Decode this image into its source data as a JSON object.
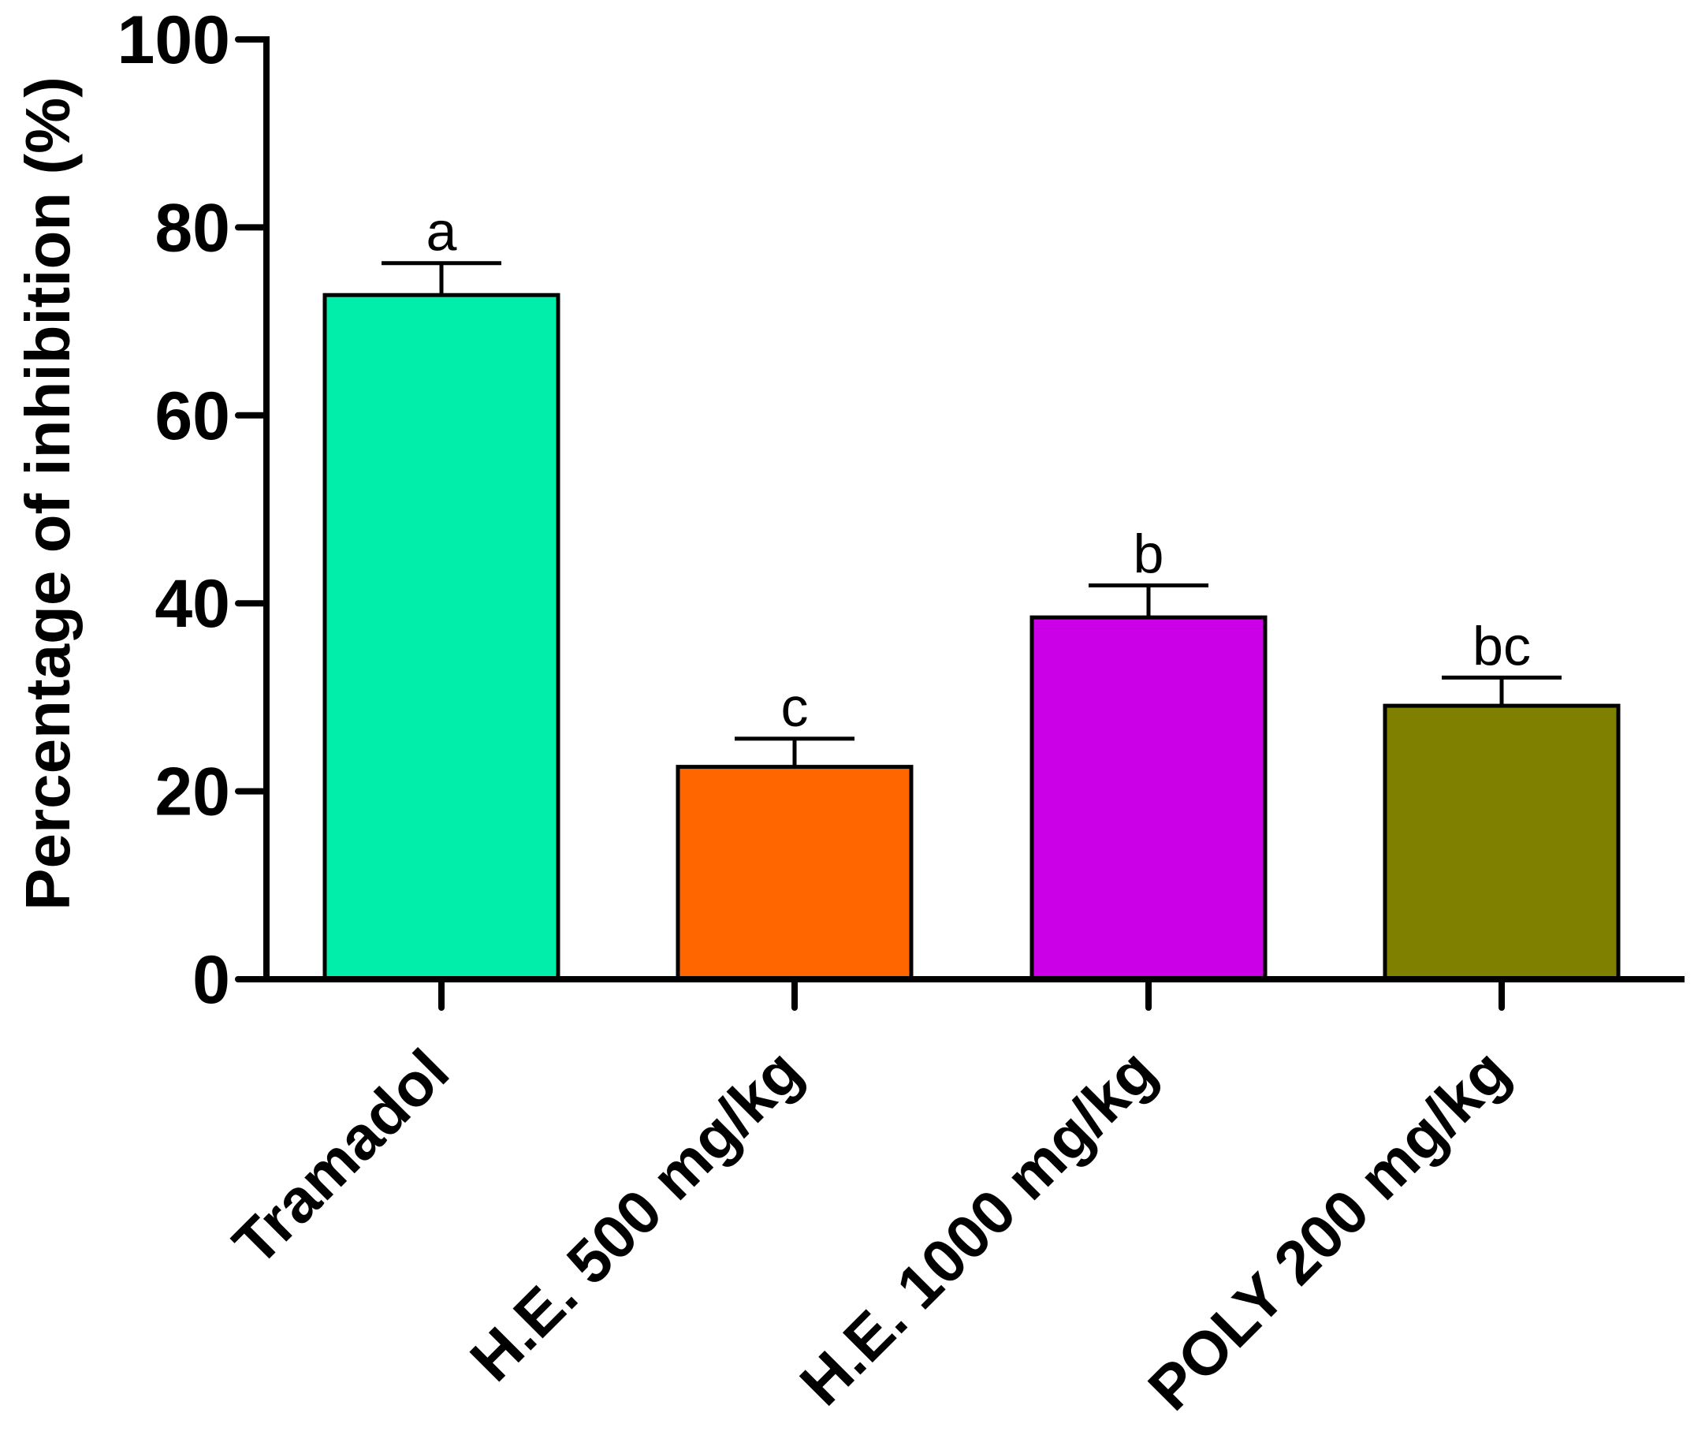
{
  "chart_data": {
    "type": "bar",
    "title": "",
    "xlabel": "",
    "ylabel": "Percentage of inhibition (%)",
    "ylim": [
      0,
      100
    ],
    "yticks": [
      0,
      20,
      40,
      60,
      80,
      100
    ],
    "categories": [
      "Tramadol",
      "H.E. 500 mg/kg",
      "H.E. 1000 mg/kg",
      "POLY 200 mg/kg"
    ],
    "values": [
      72.8,
      22.6,
      38.5,
      29.1
    ],
    "errors": [
      3.4,
      3.0,
      3.4,
      3.0
    ],
    "significance_labels": [
      "a",
      "c",
      "b",
      "bc"
    ],
    "colors": [
      "#00EEAA",
      "#FF6600",
      "#CC00E6",
      "#808000"
    ],
    "grid": false,
    "legend": "none"
  }
}
